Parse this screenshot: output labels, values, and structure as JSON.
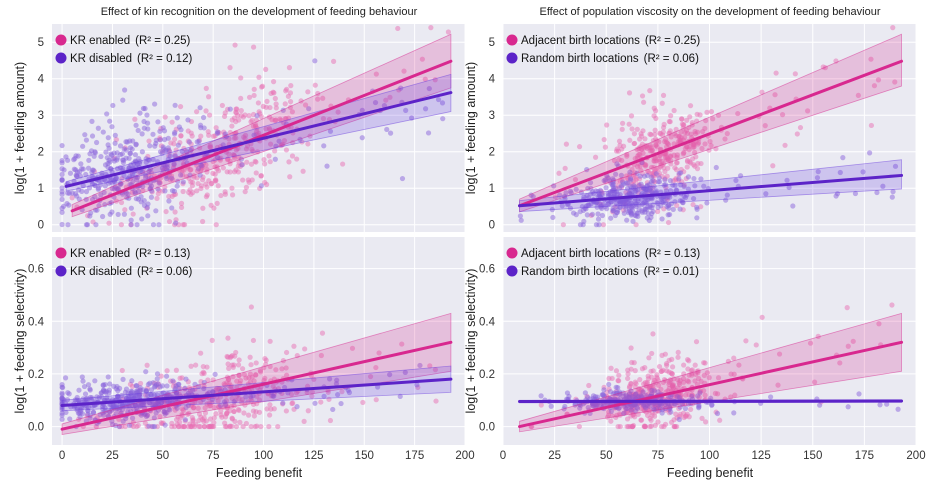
{
  "colors": {
    "series_a": "#d8288f",
    "series_b": "#5c23c8",
    "band_a": "#d8288f",
    "band_b": "#6b3fe0",
    "point_a": "#e86fb3",
    "point_b": "#8a63dc",
    "panel_bg": "#eaeaf2"
  },
  "figure": {
    "xlabel": "Feeding benefit"
  },
  "chart_data": [
    {
      "type": "scatter",
      "title": "Effect of kin recognition on the development of feeding behaviour",
      "xlabel": "",
      "ylabel": "log(1 + feeding amount)",
      "xlim": [
        -5,
        200
      ],
      "ylim": [
        -0.2,
        5.5
      ],
      "xticks": [
        0,
        25,
        50,
        75,
        100,
        125,
        150,
        175,
        200
      ],
      "yticks": [
        0,
        1,
        2,
        3,
        4,
        5
      ],
      "ytick_labels": [
        "0",
        "1",
        "2",
        "3",
        "4",
        "5"
      ],
      "legend": {
        "placement": "top-left"
      },
      "series": [
        {
          "name": "KR enabled",
          "r2": "(R² = 0.25)",
          "color": "#d8288f",
          "fit": {
            "x": [
              5,
              193
            ],
            "y": [
              0.38,
              4.48
            ]
          },
          "band": {
            "lower": [
              0.22,
              3.75
            ],
            "upper": [
              0.55,
              5.22
            ]
          },
          "scatter": {
            "seed": 11,
            "n": 400,
            "xmean": 78,
            "xsd": 22,
            "slope": 0.022,
            "icept": 0.24,
            "noise": 1.0,
            "xmin": 5,
            "xmax": 192,
            "ymin": 0,
            "ymax": 5.4
          }
        },
        {
          "name": "KR disabled",
          "r2": "(R² = 0.12)",
          "color": "#5c23c8",
          "fit": {
            "x": [
              2,
              193
            ],
            "y": [
              1.05,
              3.62
            ]
          },
          "band": {
            "lower": [
              0.92,
              3.1
            ],
            "upper": [
              1.18,
              4.12
            ]
          },
          "scatter": {
            "seed": 23,
            "n": 430,
            "xmean": 32,
            "xsd": 18,
            "slope": 0.0135,
            "icept": 1.02,
            "noise": 0.9,
            "xmin": 0,
            "xmax": 190,
            "ymin": 0,
            "ymax": 5.2
          }
        }
      ]
    },
    {
      "type": "scatter",
      "title": "Effect of population viscosity on the development of feeding behaviour",
      "xlabel": "",
      "ylabel": "log(1 + feeding amount)",
      "xlim": [
        0,
        200
      ],
      "ylim": [
        -0.2,
        5.5
      ],
      "xticks": [
        0,
        25,
        50,
        75,
        100,
        125,
        150,
        175,
        200
      ],
      "yticks": [
        0,
        1,
        2,
        3,
        4,
        5
      ],
      "ytick_labels": [
        "0",
        "1",
        "2",
        "3",
        "4",
        "5"
      ],
      "legend": {
        "placement": "top-left"
      },
      "series": [
        {
          "name": "Adjacent birth locations",
          "r2": "(R² = 0.25)",
          "color": "#d8288f",
          "fit": {
            "x": [
              8,
              193
            ],
            "y": [
              0.52,
              4.48
            ]
          },
          "band": {
            "lower": [
              0.35,
              3.8
            ],
            "upper": [
              0.7,
              5.22
            ]
          },
          "scatter": {
            "seed": 37,
            "n": 380,
            "xmean": 75,
            "xsd": 14,
            "slope": 0.0214,
            "icept": 0.35,
            "noise": 0.8,
            "xmin": 8,
            "xmax": 192,
            "ymin": 0,
            "ymax": 5.4
          }
        },
        {
          "name": "Random birth locations",
          "r2": "(R² = 0.06)",
          "color": "#5c23c8",
          "fit": {
            "x": [
              8,
              193
            ],
            "y": [
              0.52,
              1.35
            ]
          },
          "band": {
            "lower": [
              0.36,
              0.98
            ],
            "upper": [
              0.66,
              1.78
            ]
          },
          "scatter": {
            "seed": 41,
            "n": 380,
            "xmean": 62,
            "xsd": 16,
            "slope": 0.0045,
            "icept": 0.48,
            "noise": 0.4,
            "xmin": 8,
            "xmax": 192,
            "ymin": 0,
            "ymax": 2.4
          }
        }
      ]
    },
    {
      "type": "scatter",
      "title": "",
      "xlabel": "Feeding benefit",
      "ylabel": "log(1 + feeding selectivity)",
      "xlim": [
        -5,
        200
      ],
      "ylim": [
        -0.07,
        0.72
      ],
      "xticks": [
        0,
        25,
        50,
        75,
        100,
        125,
        150,
        175,
        200
      ],
      "yticks": [
        0,
        0.2,
        0.4,
        0.6
      ],
      "ytick_labels": [
        "0.0",
        "0.2",
        "0.4",
        "0.6"
      ],
      "legend": {
        "placement": "top-left"
      },
      "series": [
        {
          "name": "KR enabled",
          "r2": "(R² = 0.13)",
          "color": "#d8288f",
          "fit": {
            "x": [
              0,
              193
            ],
            "y": [
              -0.01,
              0.32
            ]
          },
          "band": {
            "lower": [
              -0.03,
              0.21
            ],
            "upper": [
              0.01,
              0.43
            ]
          },
          "scatter": {
            "seed": 53,
            "n": 380,
            "xmean": 78,
            "xsd": 22,
            "slope": 0.0014,
            "icept": -0.01,
            "noise": 0.12,
            "xmin": 5,
            "xmax": 192,
            "ymin": 0,
            "ymax": 0.69
          }
        },
        {
          "name": "KR disabled",
          "r2": "(R² = 0.06)",
          "color": "#5c23c8",
          "fit": {
            "x": [
              0,
              193
            ],
            "y": [
              0.08,
              0.18
            ]
          },
          "band": {
            "lower": [
              0.06,
              0.13
            ],
            "upper": [
              0.1,
              0.23
            ]
          },
          "scatter": {
            "seed": 67,
            "n": 420,
            "xmean": 30,
            "xsd": 18,
            "slope": 0.0005,
            "icept": 0.08,
            "noise": 0.05,
            "xmin": 0,
            "xmax": 190,
            "ymin": 0,
            "ymax": 0.35
          }
        }
      ]
    },
    {
      "type": "scatter",
      "title": "",
      "xlabel": "Feeding benefit",
      "ylabel": "log(1 + feeding selectivity)",
      "xlim": [
        0,
        200
      ],
      "ylim": [
        -0.07,
        0.72
      ],
      "xticks": [
        0,
        25,
        50,
        75,
        100,
        125,
        150,
        175,
        200
      ],
      "yticks": [
        0,
        0.2,
        0.4,
        0.6
      ],
      "ytick_labels": [
        "0.0",
        "0.2",
        "0.4",
        "0.6"
      ],
      "legend": {
        "placement": "top-left"
      },
      "series": [
        {
          "name": "Adjacent birth locations",
          "r2": "(R² = 0.13)",
          "color": "#d8288f",
          "fit": {
            "x": [
              8,
              193
            ],
            "y": [
              0.0,
              0.32
            ]
          },
          "band": {
            "lower": [
              -0.02,
              0.21
            ],
            "upper": [
              0.02,
              0.43
            ]
          },
          "scatter": {
            "seed": 79,
            "n": 380,
            "xmean": 75,
            "xsd": 14,
            "slope": 0.0017,
            "icept": -0.01,
            "noise": 0.1,
            "xmin": 8,
            "xmax": 192,
            "ymin": 0,
            "ymax": 0.69
          }
        },
        {
          "name": "Random birth locations",
          "r2": "(R² = 0.01)",
          "color": "#5c23c8",
          "fit": {
            "x": [
              8,
              193
            ],
            "y": [
              0.095,
              0.097
            ]
          },
          "band": {
            "lower": [
              0.09,
              0.092
            ],
            "upper": [
              0.1,
              0.102
            ]
          },
          "scatter": {
            "seed": 83,
            "n": 300,
            "xmean": 62,
            "xsd": 16,
            "slope": 0.0,
            "icept": 0.095,
            "noise": 0.025,
            "xmin": 8,
            "xmax": 192,
            "ymin": 0.02,
            "ymax": 0.2
          }
        }
      ]
    }
  ]
}
